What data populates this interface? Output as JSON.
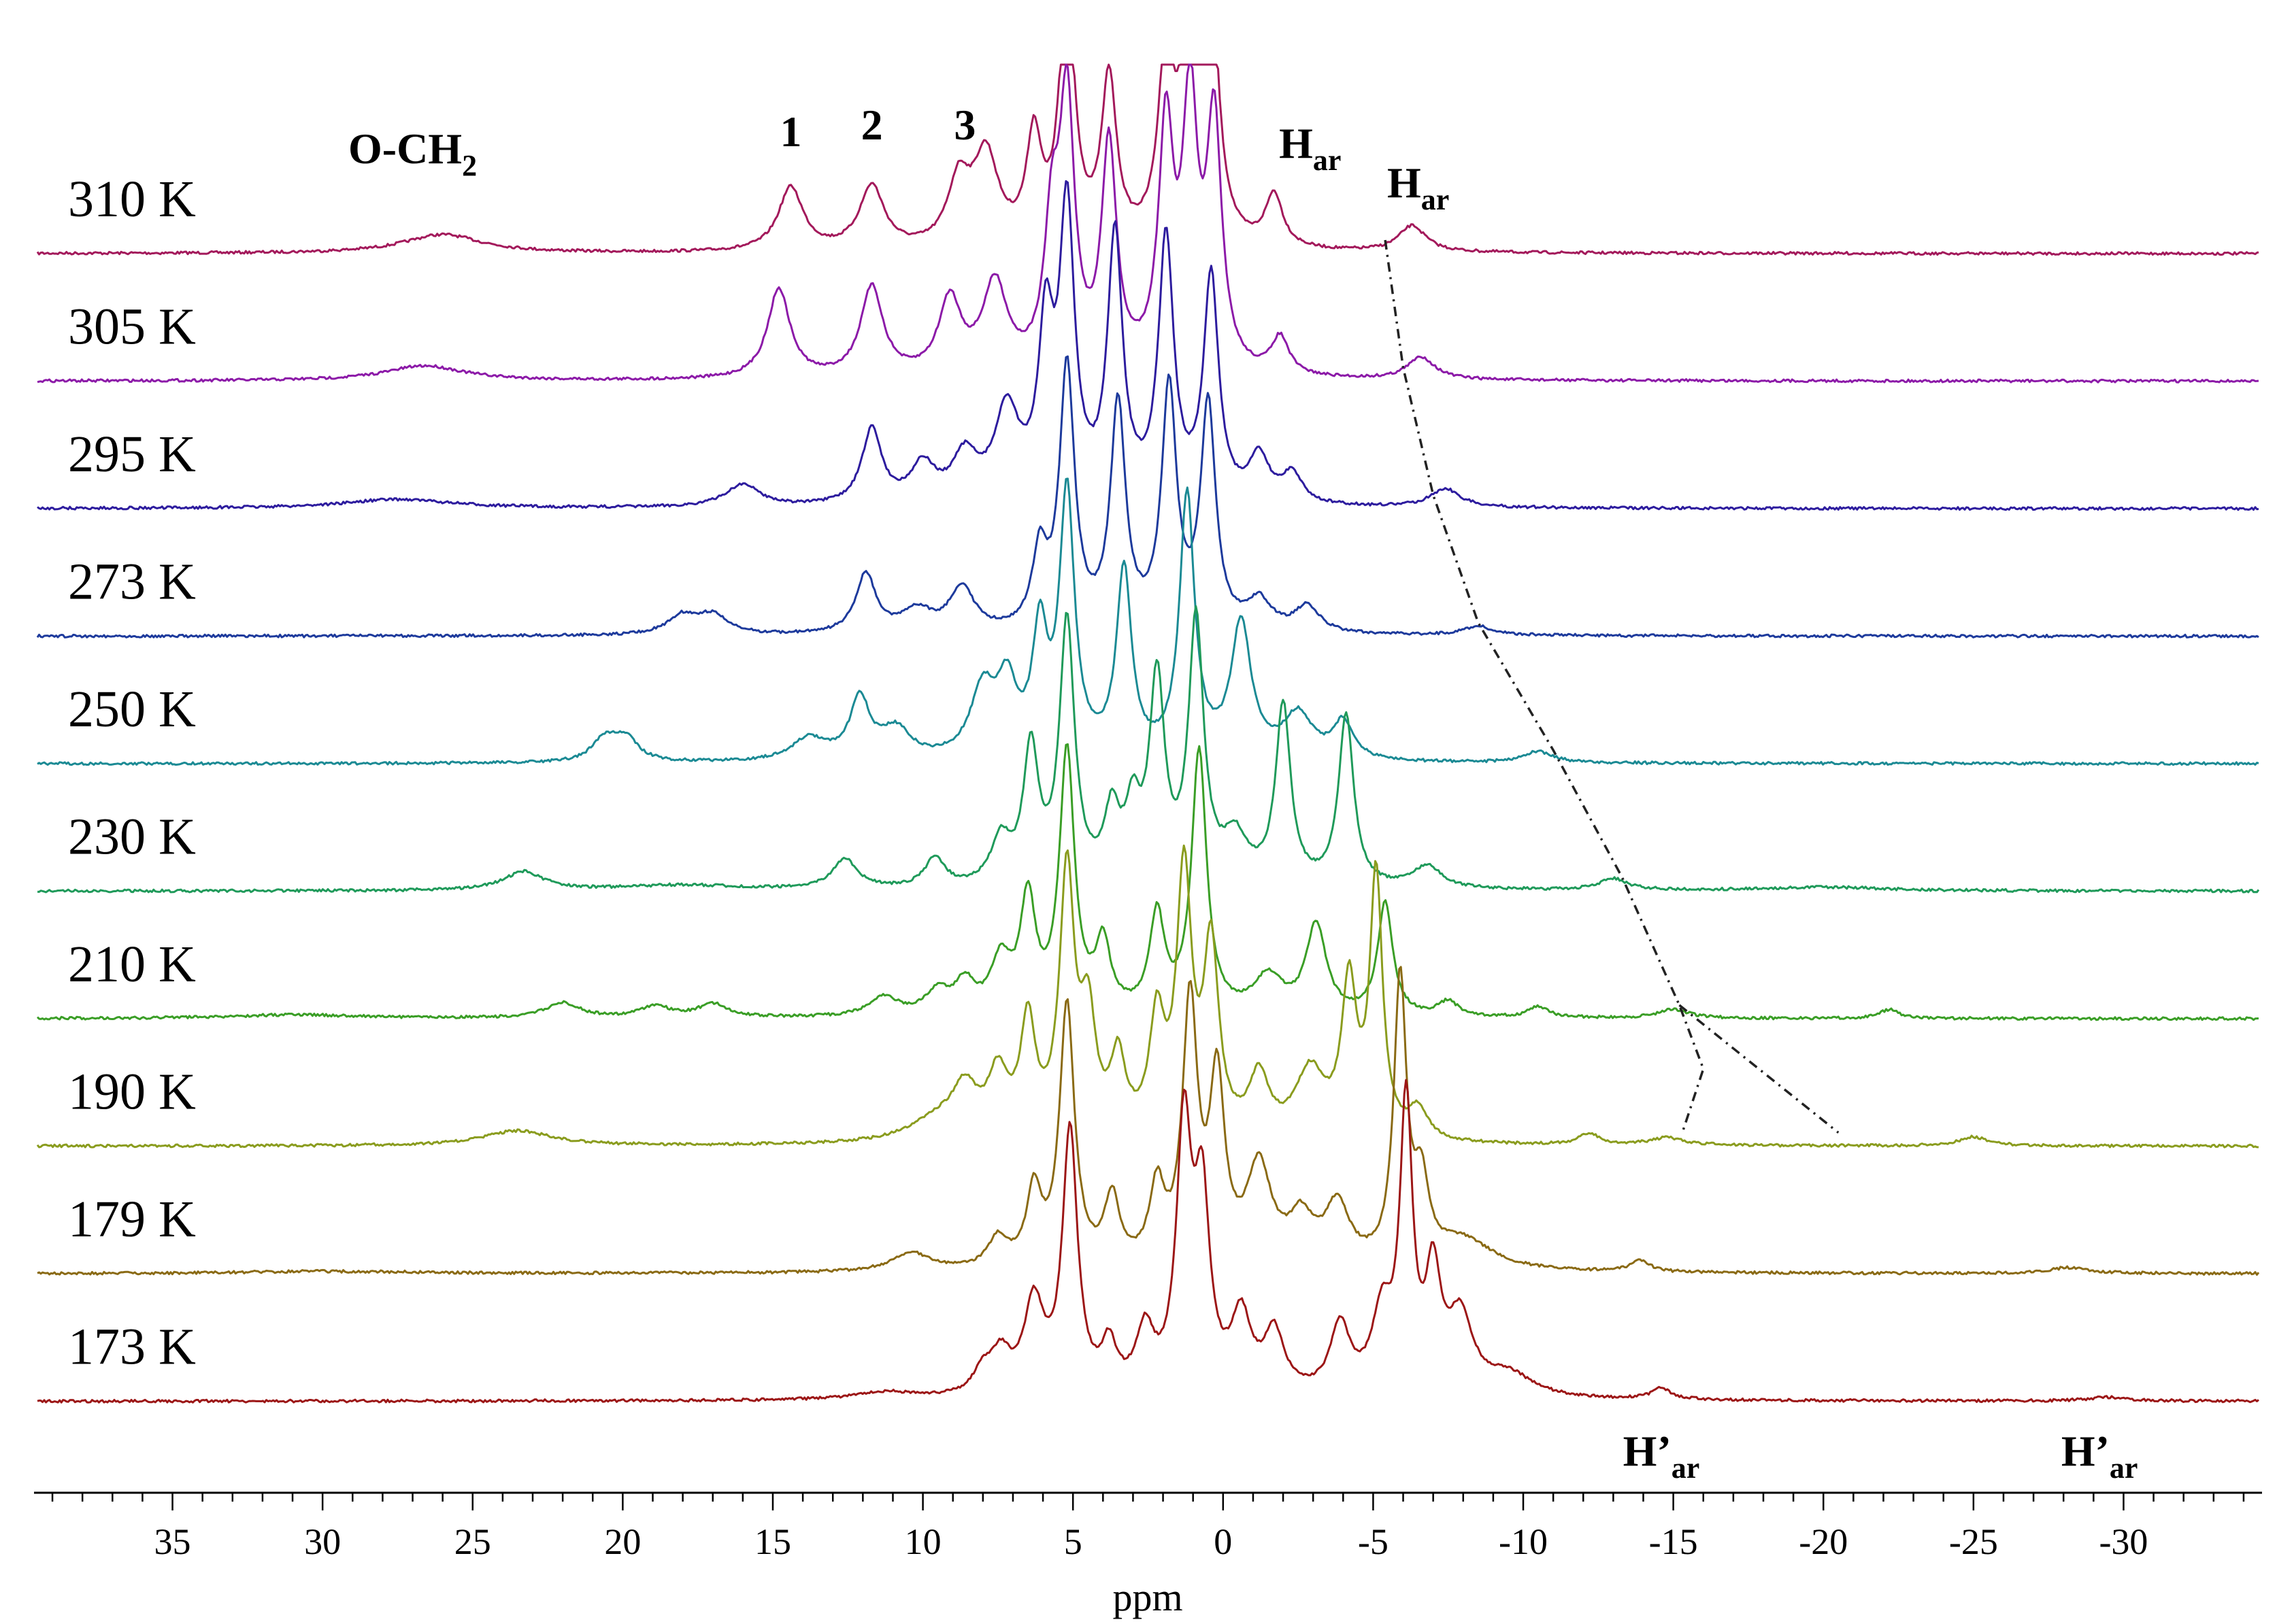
{
  "chart_data": {
    "type": "line",
    "title": "",
    "xlabel": "ppm",
    "ylabel": "",
    "xlim": [
      39.5,
      -34.5
    ],
    "x_reversed": true,
    "x_ticks": [
      35,
      30,
      25,
      20,
      15,
      10,
      5,
      0,
      -5,
      -10,
      -15,
      -20,
      -25,
      -30
    ],
    "x_tick_labels": [
      "35",
      "30",
      "25",
      "20",
      "15",
      "10",
      "5",
      "0",
      "-5",
      "-10",
      "-15",
      "-20",
      "-25",
      "-30"
    ],
    "grid": false,
    "layout": "stacked variable-temperature spectra (waterfall)",
    "series": [
      {
        "name": "310 K",
        "color": "#a3195b",
        "peaks": [
          [
            26,
            0.25,
            1.6
          ],
          [
            14.4,
            0.85,
            0.5
          ],
          [
            11.7,
            0.85,
            0.5
          ],
          [
            8.8,
            0.85,
            0.45
          ],
          [
            7.9,
            1.2,
            0.5
          ],
          [
            6.3,
            1.4,
            0.3
          ],
          [
            5.2,
            3.5,
            0.3
          ],
          [
            3.8,
            2.2,
            0.3
          ],
          [
            1.9,
            2.5,
            0.3
          ],
          [
            1.1,
            3.5,
            0.3
          ],
          [
            0.4,
            3.2,
            0.3
          ],
          [
            -1.7,
            0.7,
            0.35
          ],
          [
            -6.3,
            0.35,
            0.55
          ]
        ]
      },
      {
        "name": "305 K",
        "color": "#8c1aa8",
        "peaks": [
          [
            26.6,
            0.2,
            1.6
          ],
          [
            14.8,
            1.2,
            0.45
          ],
          [
            11.7,
            1.2,
            0.45
          ],
          [
            9.1,
            1.0,
            0.45
          ],
          [
            7.6,
            1.2,
            0.5
          ],
          [
            5.7,
            1.8,
            0.3
          ],
          [
            5.2,
            3.5,
            0.3
          ],
          [
            3.8,
            3.0,
            0.3
          ],
          [
            1.9,
            3.2,
            0.3
          ],
          [
            1.1,
            3.5,
            0.3
          ],
          [
            0.3,
            3.3,
            0.3
          ],
          [
            -1.9,
            0.5,
            0.35
          ],
          [
            -6.6,
            0.3,
            0.55
          ]
        ]
      },
      {
        "name": "295 K",
        "color": "#2d1c9e",
        "peaks": [
          [
            27.5,
            0.12,
            2.2
          ],
          [
            16,
            0.3,
            0.7
          ],
          [
            11.7,
            1.0,
            0.4
          ],
          [
            10,
            0.5,
            0.5
          ],
          [
            8.6,
            0.6,
            0.5
          ],
          [
            7.2,
            1.2,
            0.5
          ],
          [
            5.9,
            2.2,
            0.3
          ],
          [
            5.2,
            3.8,
            0.3
          ],
          [
            3.6,
            3.5,
            0.3
          ],
          [
            1.9,
            3.5,
            0.3
          ],
          [
            0.4,
            3.0,
            0.3
          ],
          [
            -1.2,
            0.6,
            0.4
          ],
          [
            -2.3,
            0.4,
            0.4
          ],
          [
            -7.4,
            0.25,
            0.6
          ]
        ]
      },
      {
        "name": "273 K",
        "color": "#1d3a9c",
        "peaks": [
          [
            18,
            0.25,
            0.6
          ],
          [
            17,
            0.25,
            0.6
          ],
          [
            11.9,
            0.8,
            0.4
          ],
          [
            10.2,
            0.3,
            0.6
          ],
          [
            8.7,
            0.6,
            0.5
          ],
          [
            6.1,
            1.0,
            0.3
          ],
          [
            5.2,
            3.5,
            0.3
          ],
          [
            3.5,
            3.0,
            0.3
          ],
          [
            1.8,
            3.2,
            0.3
          ],
          [
            0.5,
            3.0,
            0.3
          ],
          [
            -1.2,
            0.4,
            0.5
          ],
          [
            -2.8,
            0.35,
            0.5
          ],
          [
            -8.5,
            0.12,
            0.6
          ]
        ]
      },
      {
        "name": "250 K",
        "color": "#1b8a94",
        "peaks": [
          [
            20.6,
            0.3,
            0.5
          ],
          [
            19.9,
            0.3,
            0.5
          ],
          [
            13.8,
            0.3,
            0.7
          ],
          [
            12.1,
            0.8,
            0.4
          ],
          [
            10.9,
            0.4,
            0.6
          ],
          [
            8,
            0.9,
            0.5
          ],
          [
            7.2,
            0.9,
            0.4
          ],
          [
            6.1,
            1.6,
            0.3
          ],
          [
            5.2,
            3.5,
            0.3
          ],
          [
            3.3,
            2.5,
            0.3
          ],
          [
            1.2,
            3.5,
            0.3
          ],
          [
            -0.6,
            1.8,
            0.4
          ],
          [
            -2.5,
            0.6,
            0.6
          ],
          [
            -4,
            0.5,
            0.4
          ],
          [
            -10.5,
            0.15,
            0.6
          ]
        ]
      },
      {
        "name": "230 K",
        "color": "#1f9a5a",
        "peaks": [
          [
            23.3,
            0.25,
            0.8
          ],
          [
            18,
            0.07,
            2.5
          ],
          [
            12.6,
            0.4,
            0.5
          ],
          [
            9.6,
            0.4,
            0.4
          ],
          [
            7.4,
            0.6,
            0.4
          ],
          [
            6.4,
            1.8,
            0.3
          ],
          [
            5.2,
            3.5,
            0.3
          ],
          [
            3.7,
            0.9,
            0.3
          ],
          [
            3,
            0.9,
            0.3
          ],
          [
            2.2,
            2.7,
            0.3
          ],
          [
            0.9,
            3.5,
            0.3
          ],
          [
            -0.4,
            0.6,
            0.5
          ],
          [
            -2,
            2.4,
            0.3
          ],
          [
            -4.1,
            2.3,
            0.3
          ],
          [
            -6.8,
            0.3,
            0.6
          ],
          [
            -13,
            0.15,
            0.6
          ],
          [
            -20,
            0.05,
            2.5
          ]
        ]
      },
      {
        "name": "210 K",
        "color": "#3a9e26",
        "peaks": [
          [
            31,
            0.05,
            2.5
          ],
          [
            22,
            0.2,
            0.7
          ],
          [
            18.9,
            0.15,
            0.6
          ],
          [
            17,
            0.18,
            0.6
          ],
          [
            11.3,
            0.25,
            0.6
          ],
          [
            9.5,
            0.3,
            0.5
          ],
          [
            8.6,
            0.4,
            0.4
          ],
          [
            7.4,
            0.7,
            0.4
          ],
          [
            6.5,
            1.5,
            0.3
          ],
          [
            5.2,
            3.5,
            0.3
          ],
          [
            4,
            0.9,
            0.3
          ],
          [
            2.2,
            1.3,
            0.3
          ],
          [
            0.8,
            3.5,
            0.3
          ],
          [
            -1.5,
            0.5,
            0.6
          ],
          [
            -3.1,
            1.2,
            0.4
          ],
          [
            -5.4,
            1.5,
            0.3
          ],
          [
            -7.5,
            0.2,
            0.4
          ],
          [
            -10.5,
            0.15,
            0.4
          ],
          [
            -15,
            0.12,
            0.6
          ],
          [
            -22.2,
            0.12,
            0.4
          ]
        ]
      },
      {
        "name": "190 K",
        "color": "#8a9c1e",
        "peaks": [
          [
            23.5,
            0.2,
            1.4
          ],
          [
            9.5,
            0.3,
            1.2
          ],
          [
            8.6,
            0.6,
            0.5
          ],
          [
            7.5,
            0.8,
            0.4
          ],
          [
            6.5,
            1.5,
            0.3
          ],
          [
            5.2,
            3.5,
            0.3
          ],
          [
            4.5,
            1.5,
            0.3
          ],
          [
            3.5,
            1.0,
            0.3
          ],
          [
            2.2,
            1.5,
            0.3
          ],
          [
            1.3,
            3.5,
            0.3
          ],
          [
            0.4,
            2.5,
            0.3
          ],
          [
            -1.2,
            0.8,
            0.4
          ],
          [
            -2.9,
            0.9,
            0.6
          ],
          [
            -4.2,
            2.0,
            0.3
          ],
          [
            -5.1,
            3.5,
            0.25
          ],
          [
            -6.5,
            0.4,
            0.4
          ],
          [
            -12.2,
            0.15,
            0.4
          ],
          [
            -14.8,
            0.1,
            0.7
          ],
          [
            -25,
            0.12,
            0.6
          ]
        ]
      },
      {
        "name": "179 K",
        "color": "#8a6a14",
        "peaks": [
          [
            29.8,
            0.03,
            3.5
          ],
          [
            10.4,
            0.25,
            0.8
          ],
          [
            7.5,
            0.4,
            0.4
          ],
          [
            6.3,
            1.0,
            0.3
          ],
          [
            5.2,
            3.5,
            0.3
          ],
          [
            3.7,
            0.9,
            0.3
          ],
          [
            2.2,
            1.0,
            0.3
          ],
          [
            1.1,
            3.5,
            0.3
          ],
          [
            0.2,
            2.4,
            0.3
          ],
          [
            -1.2,
            1.3,
            0.5
          ],
          [
            -2.6,
            0.6,
            0.5
          ],
          [
            -3.8,
            0.8,
            0.5
          ],
          [
            -5.9,
            3.8,
            0.25
          ],
          [
            -6.6,
            1.0,
            0.3
          ],
          [
            -8,
            0.4,
            1.2
          ],
          [
            -13.9,
            0.15,
            0.4
          ],
          [
            -28.2,
            0.08,
            0.8
          ]
        ]
      },
      {
        "name": "173 K",
        "color": "#9c1616",
        "peaks": [
          [
            11.3,
            0.1,
            1.2
          ],
          [
            8,
            0.3,
            0.4
          ],
          [
            7.4,
            0.5,
            0.4
          ],
          [
            6.3,
            1.2,
            0.4
          ],
          [
            5.1,
            3.5,
            0.3
          ],
          [
            3.8,
            0.6,
            0.3
          ],
          [
            2.6,
            0.8,
            0.35
          ],
          [
            1.3,
            3.5,
            0.3
          ],
          [
            0.7,
            2.5,
            0.3
          ],
          [
            -0.6,
            1.0,
            0.4
          ],
          [
            -1.7,
            0.8,
            0.4
          ],
          [
            -3.9,
            0.9,
            0.4
          ],
          [
            -5.3,
            1.0,
            0.4
          ],
          [
            -6.1,
            3.8,
            0.25
          ],
          [
            -7,
            1.5,
            0.3
          ],
          [
            -7.9,
            1.0,
            0.5
          ],
          [
            -9.5,
            0.3,
            1.0
          ],
          [
            -14.6,
            0.15,
            0.4
          ],
          [
            -29.5,
            0.05,
            0.8
          ]
        ]
      }
    ],
    "annotations": [
      {
        "text": "O-CH",
        "sub": "2",
        "x": 27
      },
      {
        "text": "1",
        "x": 14.4
      },
      {
        "text": "2",
        "x": 11.7
      },
      {
        "text": "3",
        "x": 8.6
      },
      {
        "text": "H",
        "sub": "ar",
        "x": -2.9
      },
      {
        "text": "H",
        "sub": "ar",
        "x": -6.5
      },
      {
        "text": "H’",
        "sub": "ar",
        "x": -14.6
      },
      {
        "text": "H’",
        "sub": "ar",
        "x": -29.2
      }
    ],
    "guide_path": [
      [
        -5.4,
        310
      ],
      [
        -6,
        305
      ],
      [
        -7,
        295
      ],
      [
        -8.5,
        273
      ],
      [
        -11,
        250
      ],
      [
        -13.3,
        230
      ],
      [
        -15.2,
        210
      ],
      [
        -16,
        200
      ],
      [
        -15.3,
        190
      ]
    ],
    "guide_branch": [
      [
        -15.2,
        210
      ],
      [
        -20.5,
        190
      ]
    ]
  }
}
